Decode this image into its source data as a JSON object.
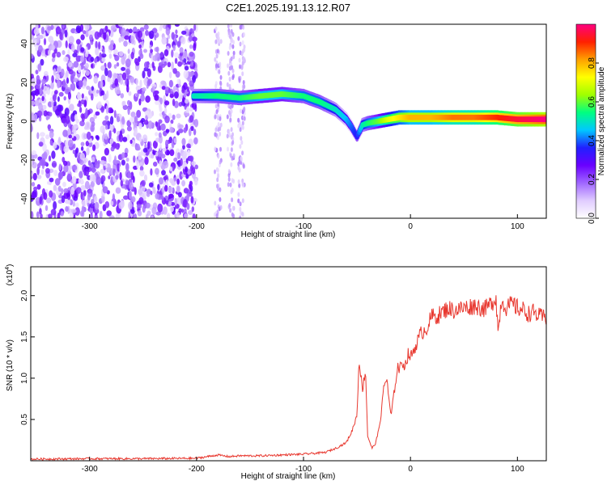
{
  "figure": {
    "title": "C2E1.2025.191.13.12.R07"
  },
  "chart_data": [
    {
      "type": "heatmap",
      "title": "C2E1.2025.191.13.12.R07",
      "xlabel": "Height of straight line (km)",
      "ylabel": "Frequency (Hz)",
      "xlim": [
        -355,
        127
      ],
      "ylim": [
        -50,
        50
      ],
      "x_ticks": [
        -300,
        -200,
        -100,
        0,
        100
      ],
      "y_ticks": [
        -40,
        -20,
        0,
        20,
        40
      ],
      "colorbar": {
        "label": "Normalized spectral amplitude",
        "range": [
          0,
          1
        ],
        "ticks": [
          "0.0",
          "0.2",
          "0.4",
          "0.6",
          "0.8"
        ],
        "colormap": [
          "#ffffff",
          "#e0ccff",
          "#a066ff",
          "#6a00ff",
          "#2020ff",
          "#00c8ff",
          "#00ff80",
          "#a0ff00",
          "#ffff00",
          "#ffa000",
          "#ff2000",
          "#ff0080"
        ]
      },
      "noise_region": {
        "x_range": [
          -355,
          -200
        ],
        "amplitude": 0.25
      },
      "ridge": {
        "x": [
          -203,
          -180,
          -160,
          -140,
          -120,
          -100,
          -85,
          -70,
          -60,
          -55,
          -50,
          -45,
          -40,
          -30,
          -20,
          -10,
          0,
          20,
          40,
          60,
          80,
          100,
          127
        ],
        "y": [
          13,
          13,
          12,
          13,
          14,
          13,
          10,
          6,
          1,
          -3,
          -8,
          -2,
          -1,
          0,
          1,
          2,
          2,
          2,
          2,
          2,
          2,
          1,
          1
        ],
        "amplitude": [
          0.5,
          0.55,
          0.55,
          0.6,
          0.6,
          0.55,
          0.55,
          0.5,
          0.45,
          0.4,
          0.35,
          0.5,
          0.55,
          0.6,
          0.7,
          0.75,
          0.8,
          0.8,
          0.85,
          0.85,
          0.9,
          0.95,
          1.0
        ]
      }
    },
    {
      "type": "line",
      "xlabel": "Height of straight line (km)",
      "ylabel": "SNR (10 * v/v)",
      "y_multiplier": "(x10",
      "y_multiplier_exp": "4",
      "xlim": [
        -355,
        127
      ],
      "ylim": [
        0,
        23500
      ],
      "x_ticks": [
        -300,
        -200,
        -100,
        0,
        100
      ],
      "y_ticks": [
        5000,
        10000,
        15000,
        20000
      ],
      "y_tick_labels": [
        "0.5",
        "1.0",
        "1.5",
        "2.0"
      ],
      "color": "#e8382f",
      "series": [
        {
          "x": [
            -355,
            -300,
            -250,
            -200,
            -180,
            -170,
            -160,
            -140,
            -120,
            -100,
            -90,
            -80,
            -70,
            -60,
            -55,
            -50,
            -48,
            -45,
            -42,
            -40,
            -36,
            -33,
            -30,
            -27,
            -25,
            -22,
            -20,
            -18,
            -15,
            -12,
            -10,
            -8,
            -5,
            -2,
            0,
            5,
            10,
            15,
            20,
            25,
            30,
            35,
            40,
            50,
            60,
            70,
            75,
            80,
            82,
            85,
            90,
            95,
            100,
            105,
            110,
            115,
            120,
            127
          ],
          "y": [
            200,
            250,
            250,
            300,
            700,
            500,
            600,
            600,
            700,
            800,
            900,
            1000,
            1500,
            2200,
            3500,
            5500,
            12500,
            8500,
            11000,
            3000,
            1500,
            2000,
            3500,
            6000,
            9000,
            10000,
            7000,
            5500,
            8500,
            11500,
            11000,
            12000,
            11500,
            13000,
            12500,
            14000,
            15500,
            16000,
            17500,
            17500,
            18000,
            18500,
            18200,
            18500,
            18800,
            18400,
            19000,
            19800,
            15500,
            19500,
            18500,
            19000,
            18500,
            18300,
            17800,
            18000,
            17500,
            17300
          ]
        }
      ]
    }
  ]
}
